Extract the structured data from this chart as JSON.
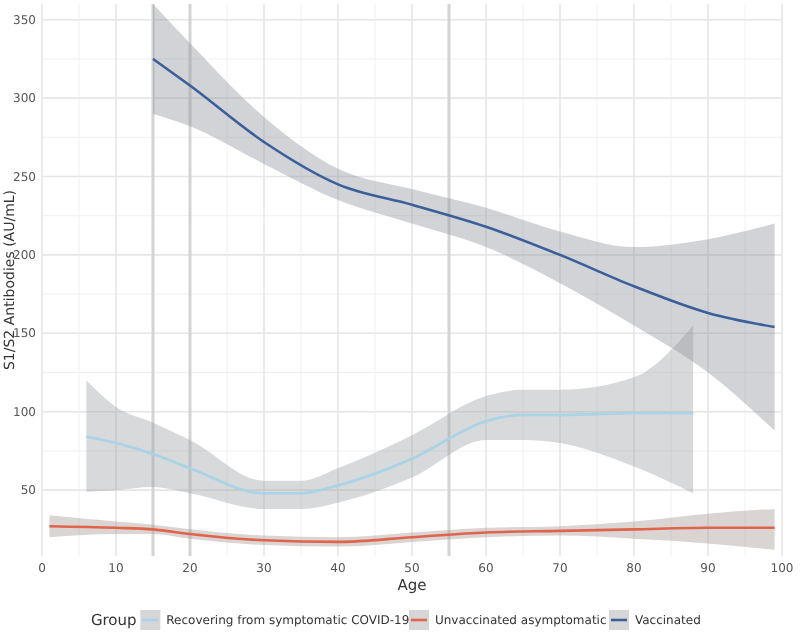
{
  "chart_data": {
    "type": "line",
    "xlabel": "Age",
    "ylabel": "S1/S2 Antibodies (AU/mL)",
    "legend_title": "Group",
    "legend": "bottom",
    "grid": true,
    "xlim": [
      0,
      100
    ],
    "xticks": [
      0,
      10,
      20,
      30,
      40,
      50,
      60,
      70,
      80,
      90,
      100
    ],
    "ylim": [
      8,
      360
    ],
    "yticks": [
      50,
      100,
      150,
      200,
      250,
      300,
      350
    ],
    "ref_lines": [
      {
        "axis": "x",
        "value": 15,
        "color": "#d4d4d4"
      },
      {
        "axis": "x",
        "value": 20,
        "color": "#d4d4d4"
      },
      {
        "axis": "x",
        "value": 55,
        "color": "#d4d4d4"
      }
    ],
    "series": [
      {
        "name": "Recovering from symptomatic COVID-19",
        "color": "#a9d3e6",
        "x": [
          6,
          10,
          15,
          20,
          30,
          35,
          40,
          50,
          60,
          65,
          70,
          80,
          88
        ],
        "values": [
          84,
          80,
          73,
          64,
          48,
          48,
          53,
          70,
          94,
          98,
          98,
          99,
          99
        ],
        "lower": [
          49,
          50,
          52,
          48,
          38,
          38,
          42,
          58,
          82,
          82,
          80,
          65,
          48
        ],
        "upper": [
          120,
          103,
          93,
          82,
          56,
          56,
          64,
          85,
          110,
          114,
          114,
          122,
          155
        ]
      },
      {
        "name": "Unvaccinated asymptomatic",
        "color": "#e0644c",
        "x": [
          1,
          10,
          15,
          20,
          30,
          40,
          50,
          60,
          70,
          80,
          90,
          99
        ],
        "values": [
          27,
          26,
          25,
          22,
          18,
          17,
          20,
          23,
          24,
          25,
          26,
          26
        ],
        "lower": [
          20,
          22,
          22,
          19,
          15,
          14,
          17,
          20,
          21,
          19,
          16,
          12
        ],
        "upper": [
          34,
          30,
          28,
          25,
          21,
          20,
          23,
          26,
          27,
          30,
          35,
          38
        ]
      },
      {
        "name": "Vaccinated",
        "color": "#3a5f9b",
        "x": [
          15,
          20,
          30,
          40,
          50,
          60,
          70,
          80,
          90,
          99
        ],
        "values": [
          325,
          308,
          272,
          245,
          232,
          218,
          200,
          180,
          163,
          154
        ],
        "lower": [
          290,
          282,
          258,
          235,
          220,
          205,
          182,
          155,
          125,
          88
        ],
        "upper": [
          360,
          335,
          288,
          255,
          242,
          230,
          215,
          205,
          210,
          220
        ]
      }
    ]
  }
}
